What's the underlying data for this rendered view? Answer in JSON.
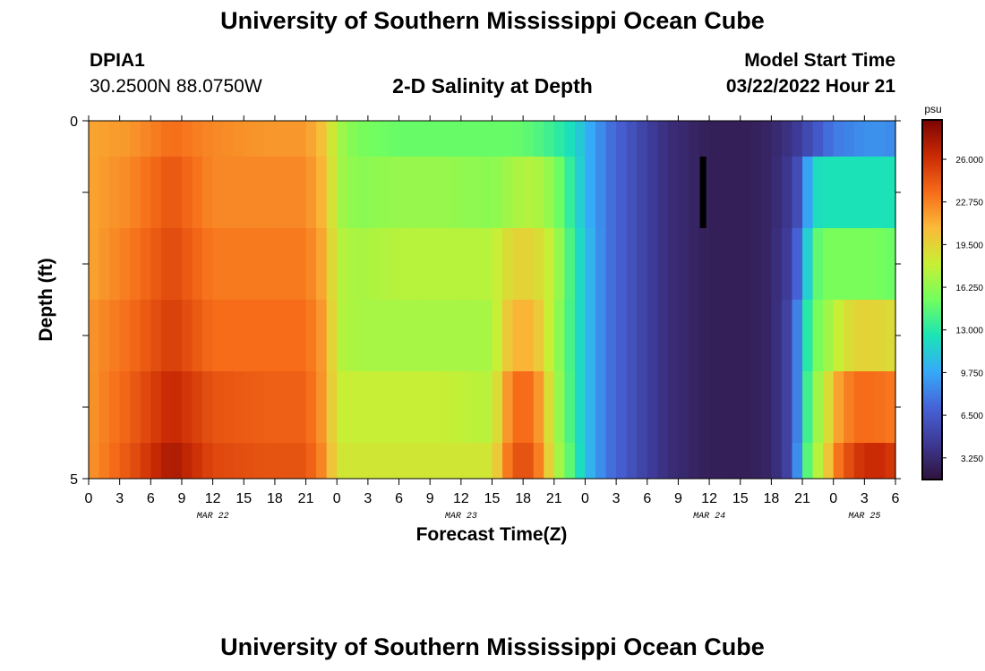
{
  "header": {
    "title": "University of Southern Mississippi Ocean Cube",
    "station_id": "DPIA1",
    "station_coords": "30.2500N  88.0750W",
    "plot_title": "2-D Salinity at Depth",
    "model_label": "Model Start Time",
    "model_time": "03/22/2022 Hour 21"
  },
  "footer": {
    "title": "University of Southern Mississippi Ocean Cube"
  },
  "chart_data": {
    "type": "heatmap",
    "title": "2-D Salinity at Depth",
    "xlabel": "Forecast Time(Z)",
    "ylabel": "Depth (ft)",
    "ylim": [
      0,
      5
    ],
    "y_tick_labels": [
      "0",
      "5"
    ],
    "x_tick_labels": [
      "0",
      "3",
      "6",
      "9",
      "12",
      "15",
      "18",
      "21",
      "0",
      "3",
      "6",
      "9",
      "12",
      "15",
      "18",
      "21",
      "0",
      "3",
      "6",
      "9",
      "12",
      "15",
      "18",
      "21",
      "0",
      "3",
      "6"
    ],
    "date_labels": [
      {
        "label": "MAR 22",
        "at_hour": 12
      },
      {
        "label": "MAR 23",
        "at_hour": 36
      },
      {
        "label": "MAR 24",
        "at_hour": 60
      },
      {
        "label": "MAR 25",
        "at_hour": 75
      }
    ],
    "time_range_hours": [
      0,
      78
    ],
    "depth_bands": [
      "0-0.5",
      "0.5-1.5",
      "1.5-2.5",
      "2.5-3.5",
      "3.5-4.5",
      "4.5-5"
    ],
    "keyframes_hours": [
      0,
      4,
      8,
      12,
      17,
      21,
      23,
      24,
      26,
      30,
      34,
      39,
      41,
      43,
      45,
      47,
      48,
      50,
      53,
      56,
      60,
      64,
      66,
      68,
      69,
      70,
      71,
      72,
      74,
      76,
      78
    ],
    "salinity_keyframes_psu": [
      [
        21.5,
        22.0,
        23.5,
        22.5,
        22.0,
        22.0,
        20.0,
        17.0,
        15.5,
        15.0,
        15.0,
        15.0,
        15.0,
        14.5,
        13.5,
        12.0,
        10.5,
        8.0,
        5.5,
        3.5,
        2.5,
        2.5,
        3.0,
        4.0,
        5.0,
        6.0,
        7.0,
        8.0,
        8.5,
        9.0,
        8.5
      ],
      [
        21.5,
        22.5,
        24.5,
        22.5,
        22.5,
        22.5,
        20.5,
        17.0,
        16.0,
        16.5,
        16.5,
        16.0,
        17.0,
        17.5,
        16.0,
        12.5,
        10.5,
        8.0,
        5.5,
        3.5,
        2.5,
        2.5,
        3.0,
        4.5,
        7.0,
        12.0,
        12.5,
        12.5,
        12.5,
        12.5,
        12.5
      ],
      [
        21.5,
        23.0,
        25.0,
        23.0,
        23.0,
        23.0,
        21.0,
        17.5,
        17.0,
        17.5,
        17.5,
        17.5,
        19.5,
        19.5,
        17.5,
        13.0,
        11.0,
        8.0,
        5.5,
        3.5,
        2.5,
        2.5,
        3.0,
        5.0,
        9.0,
        14.0,
        15.5,
        15.5,
        15.5,
        15.5,
        15.0
      ],
      [
        22.0,
        23.5,
        25.5,
        23.5,
        23.5,
        23.5,
        21.5,
        17.5,
        17.0,
        17.0,
        17.0,
        17.0,
        21.0,
        21.0,
        17.0,
        13.0,
        11.0,
        8.0,
        5.5,
        3.5,
        2.5,
        2.5,
        3.0,
        5.5,
        11.0,
        15.0,
        16.0,
        17.5,
        19.5,
        19.5,
        19.0
      ],
      [
        22.0,
        24.0,
        26.5,
        24.5,
        24.0,
        24.0,
        21.5,
        18.0,
        18.0,
        18.0,
        18.0,
        17.5,
        23.5,
        23.5,
        17.5,
        13.0,
        11.0,
        8.0,
        5.5,
        3.5,
        2.5,
        2.5,
        3.0,
        5.5,
        11.0,
        16.5,
        17.0,
        21.0,
        23.5,
        23.5,
        23.0
      ],
      [
        22.0,
        24.5,
        27.5,
        25.0,
        24.5,
        24.5,
        22.0,
        18.5,
        18.5,
        18.5,
        18.5,
        18.5,
        24.5,
        24.5,
        18.0,
        13.5,
        11.0,
        8.0,
        5.5,
        3.5,
        2.5,
        2.5,
        3.0,
        5.5,
        12.0,
        17.0,
        18.0,
        22.5,
        25.5,
        26.5,
        25.5
      ]
    ],
    "marker": {
      "time_hour": 59.4,
      "depth_from": 0.5,
      "depth_to": 1.5,
      "color": "#000000"
    },
    "colorbar": {
      "unit": "psu",
      "range": [
        1.6,
        29.0
      ],
      "tick_values": [
        26.0,
        22.75,
        19.5,
        16.25,
        13.0,
        9.75,
        6.5,
        3.25
      ],
      "tick_labels": [
        "26.000",
        "22.750",
        "19.500",
        "16.250",
        "13.000",
        "9.750",
        "6.500",
        "3.250"
      ],
      "colors": [
        "#30123b",
        "#3e3994",
        "#4662d7",
        "#36aaf9",
        "#1ae4b6",
        "#72fe5e",
        "#c8ef34",
        "#faba39",
        "#f66b19",
        "#ca2a04",
        "#7a0403"
      ]
    }
  }
}
